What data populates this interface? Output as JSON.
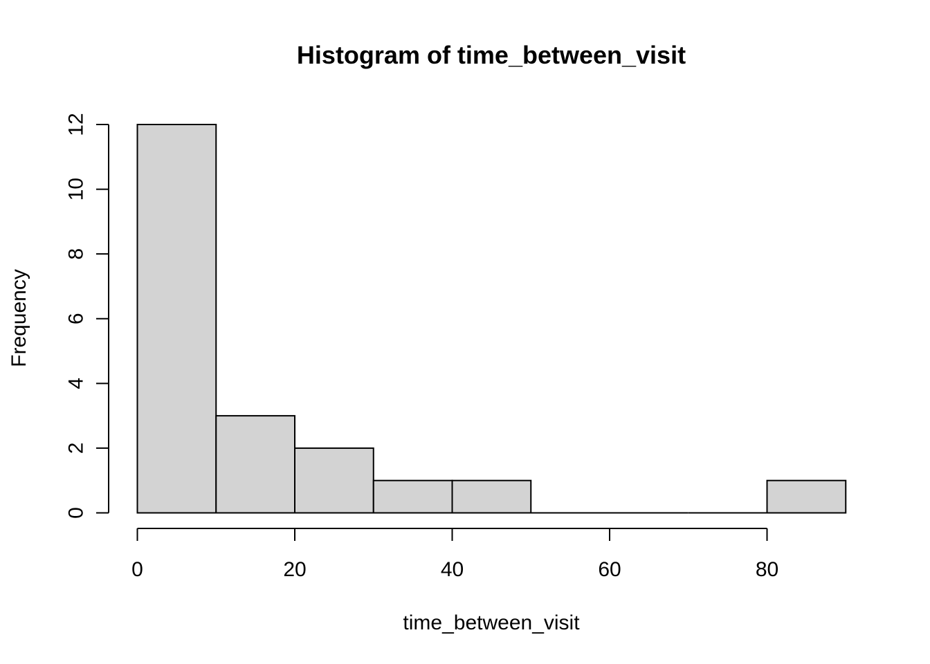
{
  "chart_data": {
    "type": "bar",
    "title": "Histogram of time_between_visit",
    "xlabel": "time_between_visit",
    "ylabel": "Frequency",
    "bins": [
      {
        "start": 0,
        "end": 10,
        "count": 12
      },
      {
        "start": 10,
        "end": 20,
        "count": 3
      },
      {
        "start": 20,
        "end": 30,
        "count": 2
      },
      {
        "start": 30,
        "end": 40,
        "count": 1
      },
      {
        "start": 40,
        "end": 50,
        "count": 1
      },
      {
        "start": 50,
        "end": 60,
        "count": 0
      },
      {
        "start": 60,
        "end": 70,
        "count": 0
      },
      {
        "start": 70,
        "end": 80,
        "count": 0
      },
      {
        "start": 80,
        "end": 90,
        "count": 1
      }
    ],
    "x_ticks": [
      "0",
      "20",
      "40",
      "60",
      "80"
    ],
    "y_ticks": [
      "0",
      "2",
      "4",
      "6",
      "8",
      "10",
      "12"
    ],
    "xlim": [
      0,
      80
    ],
    "ylim": [
      0,
      12
    ],
    "bar_color": "#d3d3d3",
    "grid": false,
    "legend": "none"
  }
}
